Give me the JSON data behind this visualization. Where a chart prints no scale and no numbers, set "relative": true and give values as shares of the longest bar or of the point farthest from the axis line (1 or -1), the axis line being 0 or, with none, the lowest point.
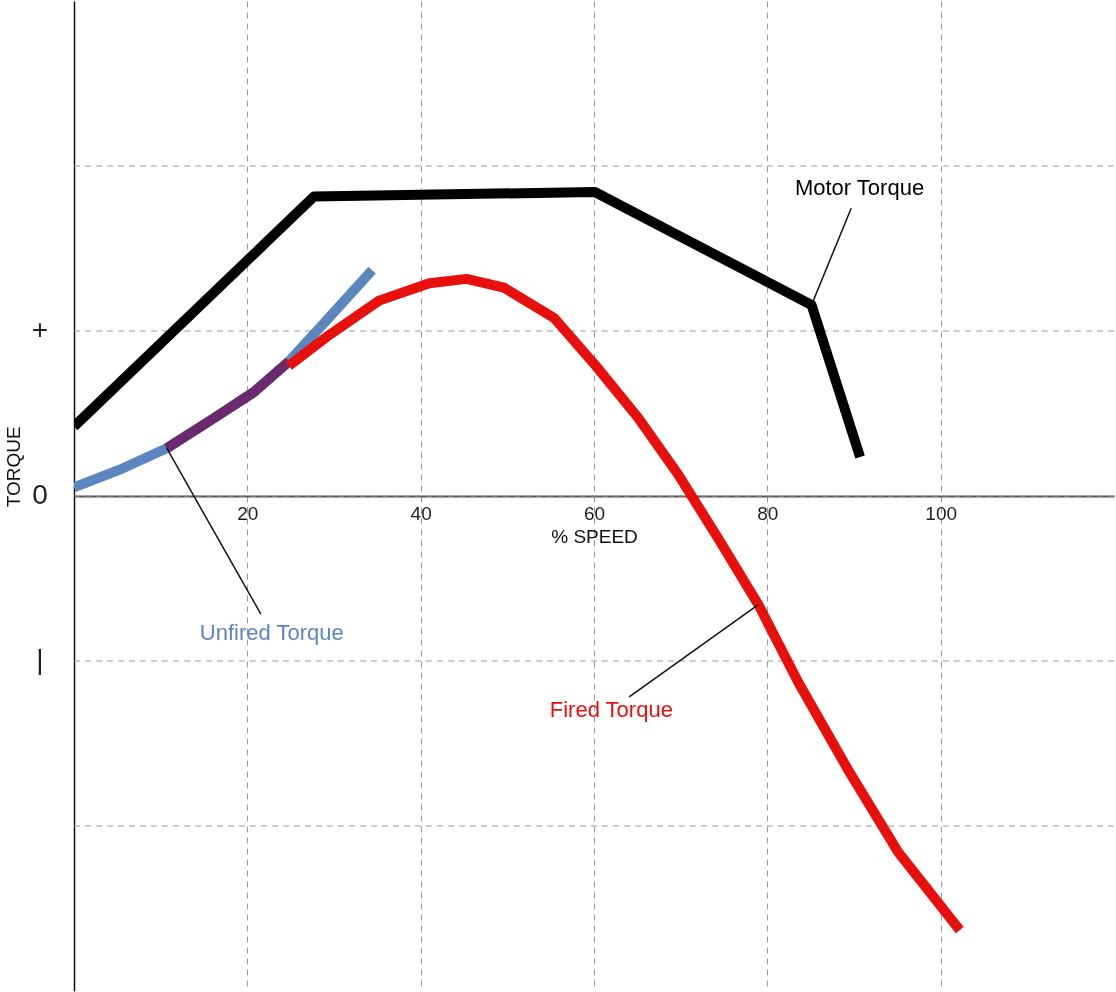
{
  "chart_data": {
    "type": "line",
    "xlabel": "% SPEED",
    "ylabel": "TORQUE",
    "relative": true,
    "xlim": [
      0,
      120
    ],
    "xticks": [
      20,
      40,
      60,
      80,
      100
    ],
    "grid": "x",
    "line_style": "solid",
    "ref_lines": [
      {
        "axis": "y",
        "value": 0.76,
        "label": null,
        "color": "#999999",
        "line_style": "dashed"
      },
      {
        "axis": "y",
        "value": 0.38,
        "label": "+",
        "color": "#999999",
        "line_style": "dashed"
      },
      {
        "axis": "y",
        "value": 0,
        "label": "0",
        "color": "#999999",
        "line_style": "dashed"
      },
      {
        "axis": "y",
        "value": -0.38,
        "label": "|",
        "color": "#999999",
        "line_style": "dashed"
      },
      {
        "axis": "y",
        "value": -0.76,
        "label": null,
        "color": "#999999",
        "line_style": "dashed"
      }
    ],
    "series": [
      {
        "name": "Motor Torque",
        "color": "#000000",
        "x": [
          0,
          27.7,
          60.1,
          85.1,
          90.7
        ],
        "values": [
          0.16,
          0.69,
          0.7,
          0.44,
          0.09
        ]
      },
      {
        "name": "Unfired Torque",
        "color": "#5b86c0",
        "x": [
          0,
          5.2,
          10.7,
          16.2,
          20.8,
          24.8,
          29.4,
          34.4
        ],
        "values": [
          0.02,
          0.06,
          0.11,
          0.18,
          0.24,
          0.31,
          0.41,
          0.52
        ]
      },
      {
        "color": "#6b2a6b",
        "x": [
          10.7,
          16.2,
          20.8,
          24.8
        ],
        "values": [
          0.11,
          0.18,
          0.24,
          0.31
        ]
      },
      {
        "name": "Fired Torque",
        "color": "#e8100c",
        "x": [
          24.8,
          29.4,
          35.2,
          41,
          45.3,
          49.6,
          55.4,
          60.2,
          65.1,
          69.7,
          74.4,
          78.96,
          83.6,
          89.3,
          95.1,
          102.2
        ],
        "values": [
          0.3,
          0.37,
          0.45,
          0.49,
          0.5,
          0.48,
          0.41,
          0.3,
          0.18,
          0.05,
          -0.1,
          -0.25,
          -0.43,
          -0.63,
          -0.82,
          -1
        ]
      }
    ]
  }
}
